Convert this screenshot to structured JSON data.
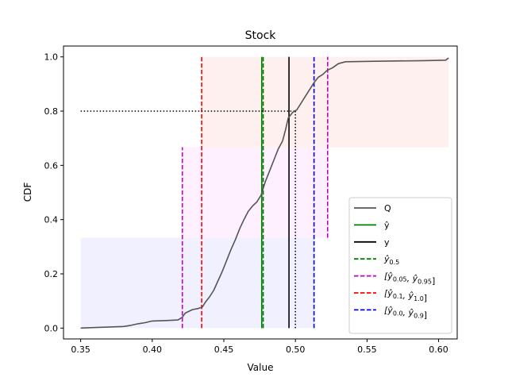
{
  "chart_data": {
    "type": "line",
    "title": "Stock",
    "xlabel": "Value",
    "ylabel": "CDF",
    "xlim": [
      0.338,
      0.613
    ],
    "ylim": [
      -0.04,
      1.04
    ],
    "x_ticks": [
      0.35,
      0.4,
      0.45,
      0.5,
      0.55,
      0.6
    ],
    "x_tick_labels": [
      "0.35",
      "0.40",
      "0.45",
      "0.50",
      "0.55",
      "0.60"
    ],
    "y_ticks": [
      0.0,
      0.2,
      0.4,
      0.6,
      0.8,
      1.0
    ],
    "y_tick_labels": [
      "0.0",
      "0.2",
      "0.4",
      "0.6",
      "0.8",
      "1.0"
    ],
    "grid": false,
    "legend_position": "lower-right",
    "legend": [
      {
        "label": "Q",
        "color": "#555555",
        "style": "solid"
      },
      {
        "label": "ŷ",
        "color": "#008000",
        "style": "solid"
      },
      {
        "label": "y",
        "color": "#000000",
        "style": "solid"
      },
      {
        "label": "ŷ0.5",
        "color": "#008000",
        "style": "dashed",
        "math": true,
        "main": "ŷ",
        "sub": "0.5"
      },
      {
        "label": "[ŷ0.05, ŷ0.95]",
        "color": "#bf00bf",
        "style": "dashed",
        "math": true,
        "interval": [
          "0.05",
          "0.95"
        ]
      },
      {
        "label": "[ŷ0.1, ŷ1.0]",
        "color": "#ff0000",
        "style": "dashed",
        "math": true,
        "interval": [
          "0.1",
          "1.0"
        ]
      },
      {
        "label": "[ŷ0.0, ŷ0.9]",
        "color": "#0000ff",
        "style": "dashed",
        "math": true,
        "interval": [
          "0.0",
          "0.9"
        ]
      }
    ],
    "series": [
      {
        "name": "Q",
        "color": "#555555",
        "points": [
          [
            0.35,
            0.0
          ],
          [
            0.365,
            0.003
          ],
          [
            0.38,
            0.006
          ],
          [
            0.385,
            0.01
          ],
          [
            0.39,
            0.016
          ],
          [
            0.395,
            0.02
          ],
          [
            0.4,
            0.026
          ],
          [
            0.41,
            0.028
          ],
          [
            0.418,
            0.03
          ],
          [
            0.421,
            0.04
          ],
          [
            0.423,
            0.055
          ],
          [
            0.428,
            0.068
          ],
          [
            0.432,
            0.072
          ],
          [
            0.435,
            0.078
          ],
          [
            0.437,
            0.095
          ],
          [
            0.44,
            0.115
          ],
          [
            0.443,
            0.14
          ],
          [
            0.446,
            0.175
          ],
          [
            0.449,
            0.21
          ],
          [
            0.452,
            0.25
          ],
          [
            0.455,
            0.29
          ],
          [
            0.458,
            0.325
          ],
          [
            0.461,
            0.365
          ],
          [
            0.464,
            0.4
          ],
          [
            0.467,
            0.43
          ],
          [
            0.47,
            0.45
          ],
          [
            0.473,
            0.465
          ],
          [
            0.476,
            0.49
          ],
          [
            0.479,
            0.54
          ],
          [
            0.482,
            0.58
          ],
          [
            0.485,
            0.62
          ],
          [
            0.488,
            0.66
          ],
          [
            0.491,
            0.69
          ],
          [
            0.493,
            0.73
          ],
          [
            0.495,
            0.775
          ],
          [
            0.498,
            0.795
          ],
          [
            0.501,
            0.805
          ],
          [
            0.504,
            0.83
          ],
          [
            0.507,
            0.855
          ],
          [
            0.51,
            0.88
          ],
          [
            0.513,
            0.905
          ],
          [
            0.516,
            0.925
          ],
          [
            0.519,
            0.935
          ],
          [
            0.522,
            0.95
          ],
          [
            0.526,
            0.96
          ],
          [
            0.53,
            0.975
          ],
          [
            0.535,
            0.982
          ],
          [
            0.56,
            0.984
          ],
          [
            0.59,
            0.986
          ],
          [
            0.605,
            0.988
          ],
          [
            0.607,
            0.996
          ]
        ]
      }
    ],
    "vertical_lines": [
      {
        "name": "y_hat",
        "x": 0.4765,
        "y0": 0.0,
        "y1": 1.0,
        "color": "#008000",
        "style": "solid"
      },
      {
        "name": "y_hat_0_5",
        "x": 0.4775,
        "y0": 0.0,
        "y1": 1.0,
        "color": "#008000",
        "style": "dashed"
      },
      {
        "name": "y",
        "x": 0.4955,
        "y0": 0.0,
        "y1": 1.0,
        "color": "#000000",
        "style": "solid"
      },
      {
        "name": "y_hat_0_05",
        "x": 0.421,
        "y0": 0.0,
        "y1": 0.667,
        "color": "#bf00bf",
        "style": "dashed"
      },
      {
        "name": "y_hat_0_95",
        "x": 0.5225,
        "y0": 0.333,
        "y1": 1.0,
        "color": "#bf00bf",
        "style": "dashed"
      },
      {
        "name": "y_hat_0_1",
        "x": 0.4345,
        "y0": 0.0,
        "y1": 1.0,
        "color": "#ff0000",
        "style": "dashed"
      },
      {
        "name": "y_hat_0_0",
        "x": 0.35,
        "y0": 0.0,
        "y1": 0.333,
        "color": "#0000ff",
        "style": "dashed",
        "hidden": true
      },
      {
        "name": "y_hat_0_9",
        "x": 0.513,
        "y0": 0.0,
        "y1": 1.0,
        "color": "#0000ff",
        "style": "dashed"
      },
      {
        "name": "quantile_of_y",
        "x": 0.5,
        "y0": 0.0,
        "y1": 0.8,
        "color": "#000000",
        "style": "dotted"
      }
    ],
    "horizontal_lines": [
      {
        "name": "cdf_at_y",
        "y": 0.8,
        "x0": 0.35,
        "x1": 0.5,
        "color": "#000000",
        "style": "dotted"
      }
    ],
    "shaded_regions": [
      {
        "name": "band-blue",
        "x0": 0.35,
        "x1": 0.513,
        "y0": 0.0,
        "y1": 0.333,
        "color": "#0000ff",
        "opacity": 0.06
      },
      {
        "name": "band-magenta",
        "x0": 0.421,
        "x1": 0.5225,
        "y0": 0.333,
        "y1": 0.667,
        "color": "#ff00ff",
        "opacity": 0.06
      },
      {
        "name": "band-red",
        "x0": 0.4345,
        "x1": 0.607,
        "y0": 0.667,
        "y1": 1.0,
        "color": "#ff0000",
        "opacity": 0.06
      }
    ]
  }
}
